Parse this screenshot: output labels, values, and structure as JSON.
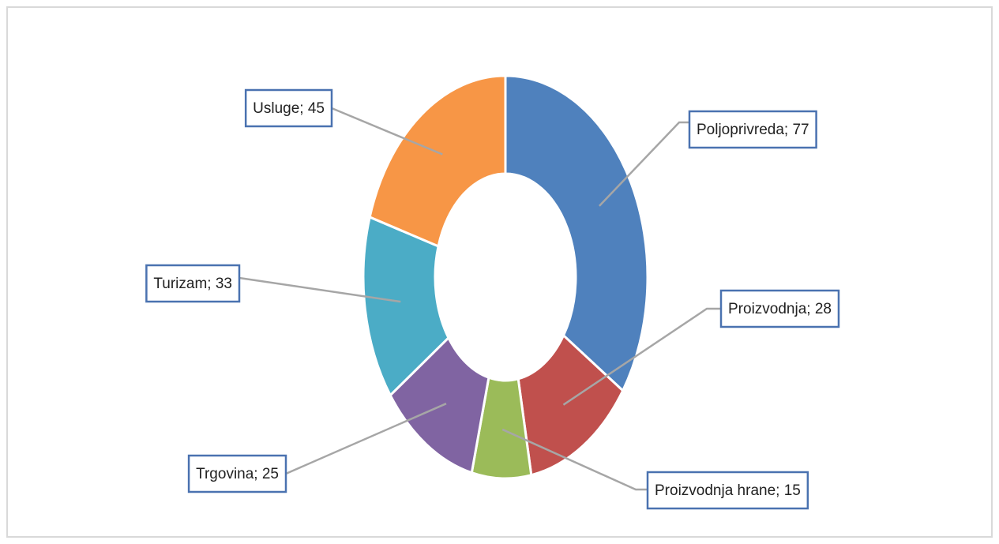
{
  "chart_data": {
    "type": "donut",
    "categories": [
      "Poljoprivreda",
      "Proizvodnja",
      "Proizvodnja hrane",
      "Trgovina",
      "Turizam",
      "Usluge"
    ],
    "values": [
      77,
      28,
      15,
      25,
      33,
      45
    ],
    "value_labels": [
      "Poljoprivreda; 77",
      "Proizvodnja; 28",
      "Proizvodnja hrane; 15",
      "Trgovina; 25",
      "Turizam; 33",
      "Usluge; 45"
    ],
    "colors": [
      "#4f81bd",
      "#c0504d",
      "#9bbb59",
      "#8064a2",
      "#4bacc6",
      "#f79646"
    ]
  }
}
